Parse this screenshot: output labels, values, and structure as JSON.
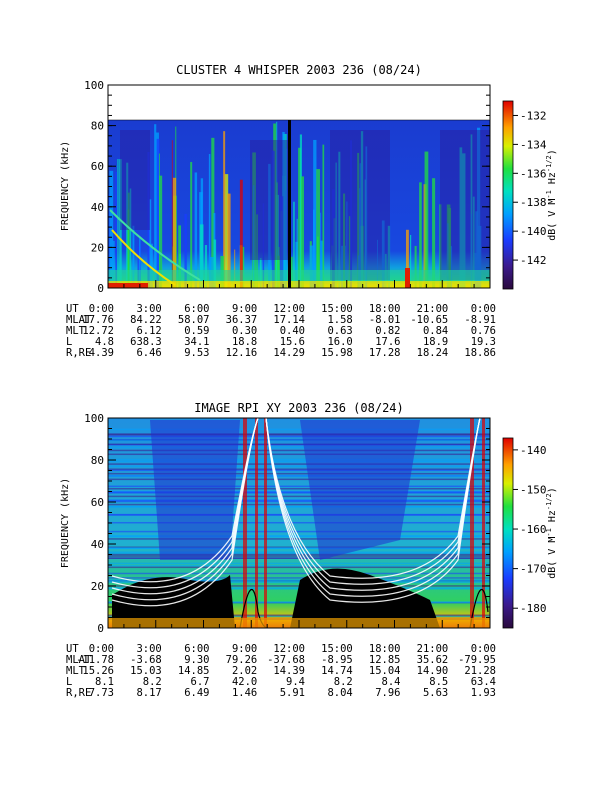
{
  "chart_data": [
    {
      "type": "heatmap",
      "title": "CLUSTER 4 WHISPER 2003 236 (08/24)",
      "ylabel": "FREQUENCY (kHz)",
      "ylim": [
        0,
        100
      ],
      "y_ticks": [
        "0",
        "20",
        "40",
        "60",
        "80",
        "100"
      ],
      "data_top_khz": 80,
      "x_ticks": [
        "0:00",
        "3:00",
        "6:00",
        "9:00",
        "12:00",
        "15:00",
        "18:00",
        "21:00",
        "0:00"
      ],
      "colorbar": {
        "label": "dB( V M",
        "label_sup1": "-1",
        "label_mid": " Hz",
        "label_sup2": "-1/2",
        "label_end": ")",
        "range": [
          -144,
          -131
        ],
        "ticks": [
          "-132",
          "-134",
          "-136",
          "-138",
          "-140",
          "-142"
        ]
      },
      "ephemeris": {
        "labels": [
          "UT",
          "MLAT",
          "MLT",
          "L",
          "R,RE"
        ],
        "rows": [
          [
            "0:00",
            "3:00",
            "6:00",
            "9:00",
            "12:00",
            "15:00",
            "18:00",
            "21:00",
            "0:00"
          ],
          [
            "17.76",
            "84.22",
            "58.07",
            "36.37",
            "17.14",
            "1.58",
            "-8.01",
            "-10.65",
            "-8.91"
          ],
          [
            "12.72",
            "6.12",
            "0.59",
            "0.30",
            "0.40",
            "0.63",
            "0.82",
            "0.84",
            "0.76"
          ],
          [
            "4.8",
            "638.3",
            "34.1",
            "18.8",
            "15.6",
            "16.0",
            "17.6",
            "18.9",
            "19.3"
          ],
          [
            "4.39",
            "6.46",
            "9.53",
            "12.16",
            "14.29",
            "15.98",
            "17.28",
            "18.24",
            "18.86"
          ]
        ]
      }
    },
    {
      "type": "heatmap",
      "title": "IMAGE RPI XY 2003 236 (08/24)",
      "ylabel": "FREQUENCY (kHz)",
      "ylim": [
        0,
        100
      ],
      "y_ticks": [
        "0",
        "20",
        "40",
        "60",
        "80",
        "100"
      ],
      "x_ticks": [
        "0:00",
        "3:00",
        "6:00",
        "9:00",
        "12:00",
        "15:00",
        "18:00",
        "21:00",
        "0:00"
      ],
      "colorbar": {
        "label": "dB( V M",
        "label_sup1": "-1",
        "label_mid": " Hz",
        "label_sup2": "-1/2",
        "label_end": ")",
        "range": [
          -185,
          -137
        ],
        "ticks": [
          "-140",
          "-150",
          "-160",
          "-170",
          "-180"
        ]
      },
      "ephemeris": {
        "labels": [
          "UT",
          "MLAT",
          "MLT",
          "L",
          "R,RE"
        ],
        "rows": [
          [
            "0:00",
            "3:00",
            "6:00",
            "9:00",
            "12:00",
            "15:00",
            "18:00",
            "21:00",
            "0:00"
          ],
          [
            "-11.78",
            "-3.68",
            "9.30",
            "79.26",
            "-37.68",
            "-8.95",
            "12.85",
            "35.62",
            "-79.95"
          ],
          [
            "15.26",
            "15.03",
            "14.85",
            "2.02",
            "14.39",
            "14.74",
            "15.04",
            "14.90",
            "21.28"
          ],
          [
            "8.1",
            "8.2",
            "6.7",
            "42.0",
            "9.4",
            "8.2",
            "8.4",
            "8.5",
            "63.4"
          ],
          [
            "7.73",
            "8.17",
            "6.49",
            "1.46",
            "5.91",
            "8.04",
            "7.96",
            "5.63",
            "1.93"
          ]
        ]
      }
    }
  ]
}
